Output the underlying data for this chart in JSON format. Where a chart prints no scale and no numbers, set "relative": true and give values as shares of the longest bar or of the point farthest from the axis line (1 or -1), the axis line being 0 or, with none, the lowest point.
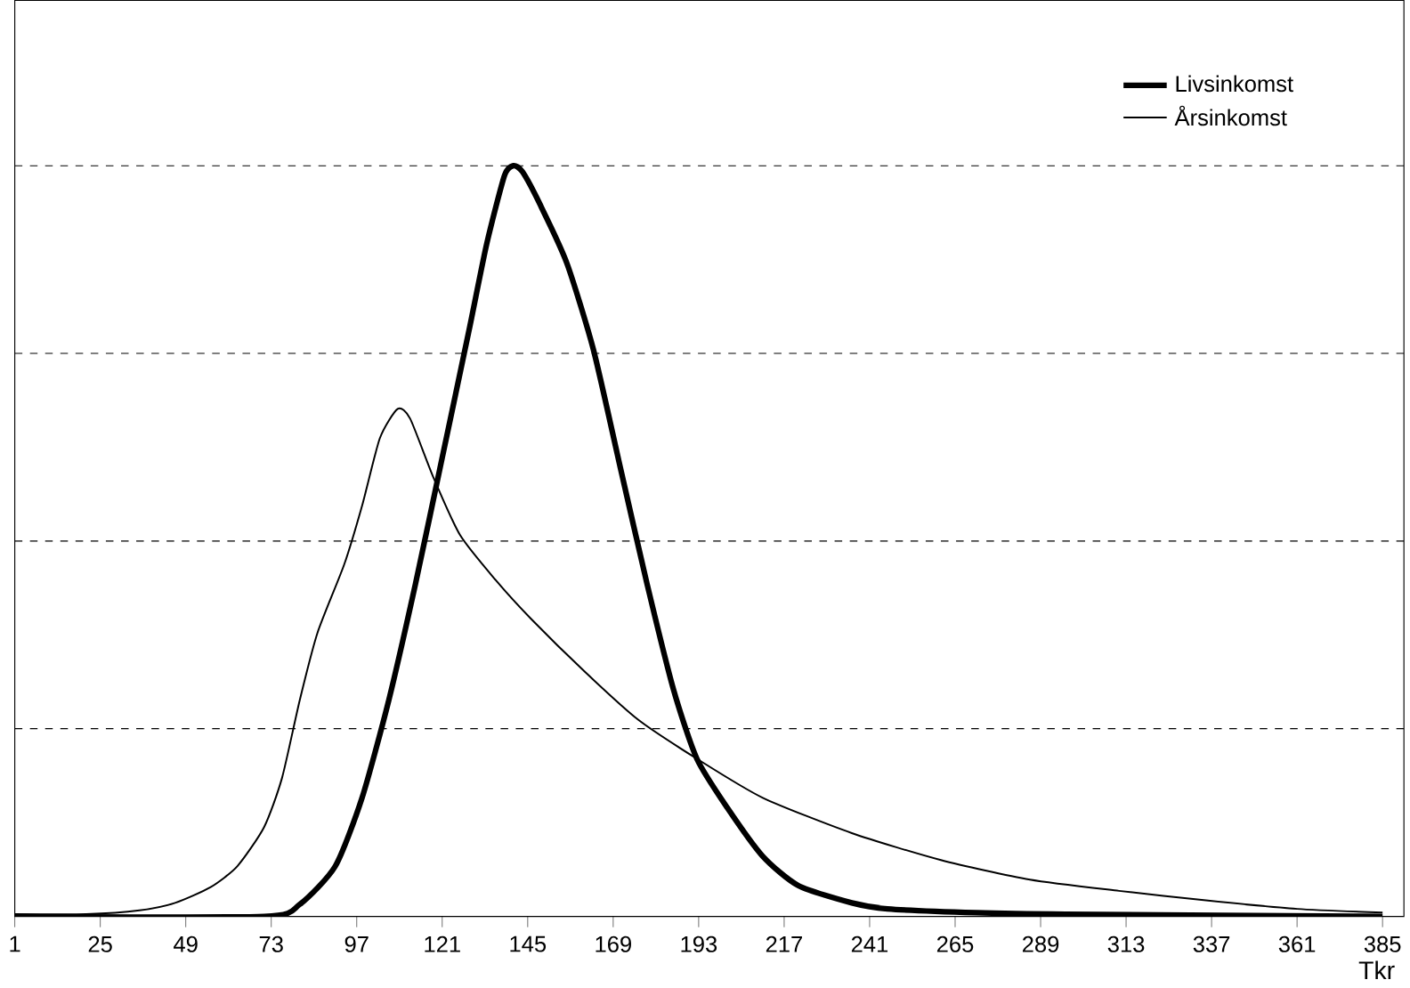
{
  "chart_data": {
    "type": "line",
    "relative": true,
    "xlabel": "Tkr",
    "xlim": [
      1,
      391
    ],
    "xticks": [
      1,
      25,
      49,
      73,
      97,
      121,
      145,
      169,
      193,
      217,
      241,
      265,
      289,
      313,
      337,
      361,
      385
    ],
    "grid": "y",
    "legend": "top right",
    "tick_labels": "x",
    "series": [
      {
        "name": "Livsinkomst",
        "color": "#000000",
        "x": [
          1,
          71,
          81,
          91,
          98.5,
          106,
          113.5,
          121,
          128.5,
          133.5,
          138.5,
          141,
          143.5,
          148.5,
          156,
          163.5,
          171,
          178.5,
          186,
          192.5,
          201,
          211,
          221,
          236,
          246,
          271,
          296,
          385
        ],
        "values": [
          0,
          0,
          0.016,
          0.067,
          0.158,
          0.288,
          0.443,
          0.611,
          0.78,
          0.896,
          0.987,
          1,
          0.992,
          0.948,
          0.87,
          0.754,
          0.598,
          0.443,
          0.301,
          0.21,
          0.145,
          0.08,
          0.041,
          0.018,
          0.01,
          0.005,
          0.003,
          0
        ]
      },
      {
        "name": "Årsinkomst",
        "color": "#000000",
        "x": [
          1,
          21,
          36,
          46,
          56,
          63.5,
          71,
          76,
          81,
          86,
          93.5,
          98.5,
          103.5,
          108.5,
          112,
          118.5,
          126,
          136,
          146,
          161,
          176,
          192.5,
          211,
          236,
          261,
          286,
          311,
          336,
          361,
          385
        ],
        "values": [
          0.003,
          0.003,
          0.008,
          0.018,
          0.039,
          0.067,
          0.119,
          0.184,
          0.288,
          0.378,
          0.469,
          0.547,
          0.637,
          0.676,
          0.663,
          0.585,
          0.508,
          0.448,
          0.396,
          0.326,
          0.262,
          0.21,
          0.158,
          0.111,
          0.075,
          0.049,
          0.034,
          0.021,
          0.01,
          0.005
        ]
      }
    ]
  }
}
